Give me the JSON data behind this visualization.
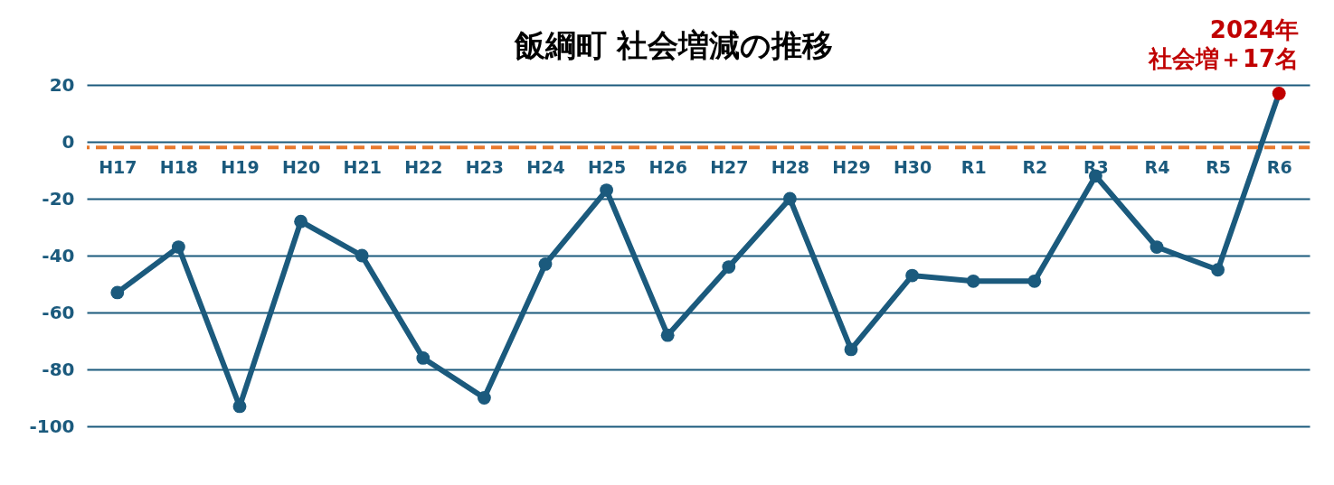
{
  "chart_data": {
    "type": "line",
    "title": "飯綱町 社会増減の推移",
    "categories": [
      "H17",
      "H18",
      "H19",
      "H20",
      "H21",
      "H22",
      "H23",
      "H24",
      "H25",
      "H26",
      "H27",
      "H28",
      "H29",
      "H30",
      "R1",
      "R2",
      "R3",
      "R4",
      "R5",
      "R6"
    ],
    "series": [
      {
        "color": "#1b5a7d",
        "colors": [
          "#1b5a7d",
          "#1b5a7d",
          "#1b5a7d",
          "#1b5a7d",
          "#1b5a7d",
          "#1b5a7d",
          "#1b5a7d",
          "#1b5a7d",
          "#1b5a7d",
          "#1b5a7d",
          "#1b5a7d",
          "#1b5a7d",
          "#1b5a7d",
          "#1b5a7d",
          "#1b5a7d",
          "#1b5a7d",
          "#1b5a7d",
          "#1b5a7d",
          "#1b5a7d",
          "#c00000"
        ],
        "values": [
          -53,
          -37,
          -93,
          -28,
          -40,
          -76,
          -90,
          -43,
          -17,
          -68,
          -44,
          -20,
          -73,
          -47,
          -49,
          -49,
          -12,
          -37,
          -45,
          17
        ]
      }
    ],
    "ylim": [
      -100,
      20
    ],
    "yticks": [
      20,
      0,
      -20,
      -40,
      -60,
      -80,
      -100
    ],
    "grid": "y",
    "marker": "circle",
    "line_style": "solid",
    "ref_lines": [
      {
        "axis": "y",
        "value": -2,
        "color": "#e8792e",
        "line_style": "dashed"
      }
    ],
    "annotations": [
      {
        "text": "2024年",
        "x": "R6",
        "y": 17
      },
      {
        "text": "社会増＋17名",
        "x": "R6",
        "y": 17
      }
    ]
  }
}
